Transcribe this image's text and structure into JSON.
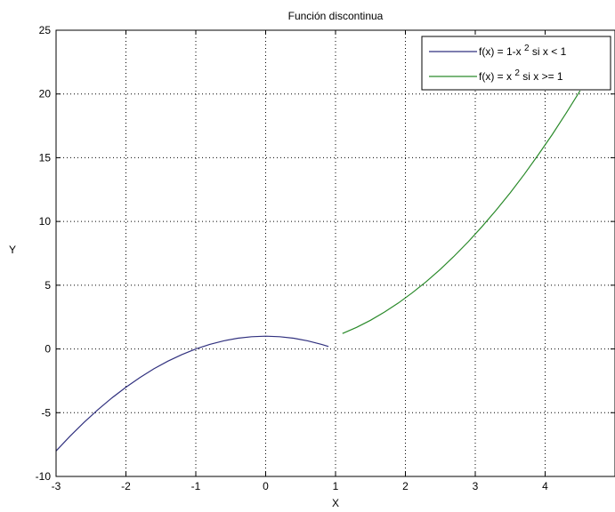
{
  "chart_data": {
    "type": "line",
    "title": "Función discontinua",
    "xlabel": "X",
    "ylabel": "Y",
    "xlim": [
      -3,
      5
    ],
    "ylim": [
      -10,
      25
    ],
    "xticks": [
      -3,
      -2,
      -1,
      0,
      1,
      2,
      3,
      4
    ],
    "xtick_labels": [
      "-3",
      "-2",
      "-1",
      "0",
      "1",
      "2",
      "3",
      "4"
    ],
    "yticks": [
      -10,
      -5,
      0,
      5,
      10,
      15,
      20,
      25
    ],
    "ytick_labels": [
      "-10",
      "-5",
      "0",
      "5",
      "10",
      "15",
      "20",
      "25"
    ],
    "grid": true,
    "grid_style": "dotted",
    "legend_position": "top-right",
    "series": [
      {
        "name": "f(x) = 1-x 2 si x < 1",
        "legend": {
          "pre": "f(x) = 1-x",
          "sup": "2",
          "post": " si x < 1"
        },
        "color": "#31317f",
        "x": [
          -3.0,
          -2.8,
          -2.6,
          -2.4,
          -2.2,
          -2.0,
          -1.8,
          -1.6,
          -1.4,
          -1.2,
          -1.0,
          -0.8,
          -0.6,
          -0.4,
          -0.2,
          0.0,
          0.2,
          0.4,
          0.6,
          0.8,
          0.9
        ],
        "y": [
          -8.0,
          -6.84,
          -5.76,
          -4.76,
          -3.84,
          -3.0,
          -2.24,
          -1.56,
          -0.96,
          -0.44,
          0.0,
          0.36,
          0.64,
          0.84,
          0.96,
          1.0,
          0.96,
          0.84,
          0.64,
          0.36,
          0.19
        ]
      },
      {
        "name": "f(x) = x 2 si x >= 1",
        "legend": {
          "pre": "f(x) = x",
          "sup": "2",
          "post": " si x >= 1"
        },
        "color": "#2a8a2a",
        "x": [
          1.1,
          1.3,
          1.5,
          1.7,
          1.9,
          2.1,
          2.3,
          2.5,
          2.7,
          2.9,
          3.1,
          3.3,
          3.5,
          3.7,
          3.9,
          4.1,
          4.3,
          4.5
        ],
        "y": [
          1.21,
          1.69,
          2.25,
          2.89,
          3.61,
          4.41,
          5.29,
          6.25,
          7.29,
          8.41,
          9.61,
          10.89,
          12.25,
          13.69,
          15.21,
          16.81,
          18.49,
          20.25
        ]
      }
    ]
  }
}
